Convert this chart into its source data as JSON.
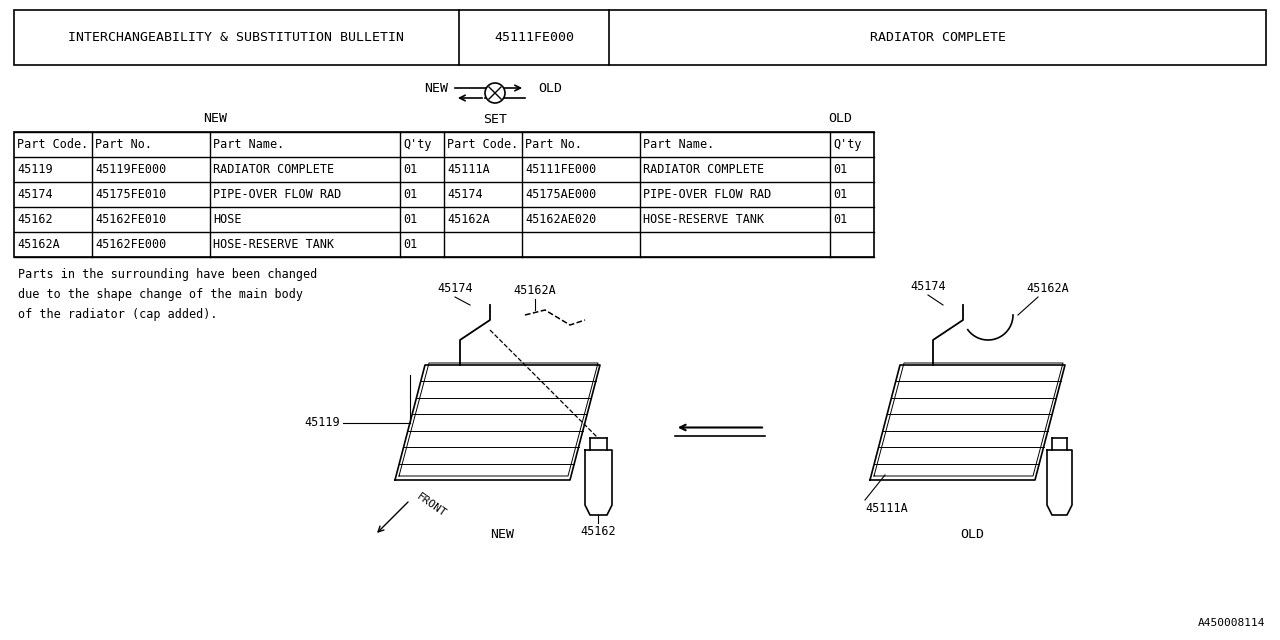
{
  "bg_color": "#ffffff",
  "line_color": "#000000",
  "text_color": "#000000",
  "title_row": {
    "col1": "INTERCHANGEABILITY & SUBSTITUTION BULLETIN",
    "col2": "45111FE000",
    "col3": "RADIATOR COMPLETE"
  },
  "header_row": [
    "Part Code.",
    "Part No.",
    "Part Name.",
    "Q'ty",
    "Part Code.",
    "Part No.",
    "Part Name.",
    "Q'ty"
  ],
  "new_rows": [
    [
      "45119",
      "45119FE000",
      "RADIATOR COMPLETE",
      "01"
    ],
    [
      "45174",
      "45175FE010",
      "PIPE-OVER FLOW RAD",
      "01"
    ],
    [
      "45162",
      "45162FE010",
      "HOSE",
      "01"
    ],
    [
      "45162A",
      "45162FE000",
      "HOSE-RESERVE TANK",
      "01"
    ]
  ],
  "old_rows": [
    [
      "45111A",
      "45111FE000",
      "RADIATOR COMPLETE",
      "01"
    ],
    [
      "45174",
      "45175AE000",
      "PIPE-OVER FLOW RAD",
      "01"
    ],
    [
      "45162A",
      "45162AE020",
      "HOSE-RESERVE TANK",
      "01"
    ]
  ],
  "note_text": "Parts in the surrounding have been changed\ndue to the shape change of the main body\nof the radiator (cap added).",
  "diagram_ref": "A450008114",
  "font_size_main": 8.5,
  "font_size_header": 9.5,
  "font_size_title": 9.5
}
